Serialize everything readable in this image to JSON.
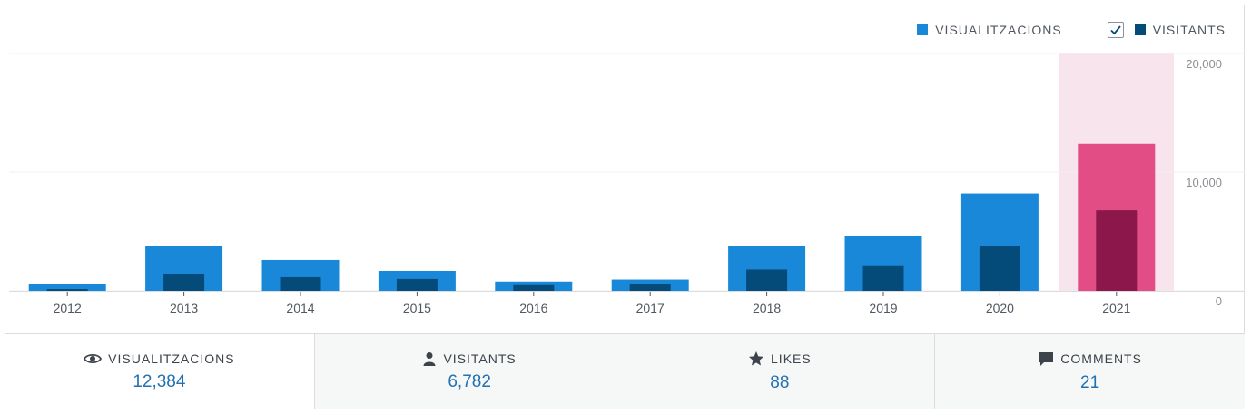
{
  "legend": {
    "views_label": "Visualitzacions",
    "visitors_label": "Visitants"
  },
  "colors": {
    "views": "#1a88d8",
    "visitors": "#044b7a",
    "highlight_views": "#e24d86",
    "highlight_visitors": "#8c174a",
    "highlight_band": "#f8e4ec"
  },
  "chart_data": {
    "type": "bar",
    "categories": [
      "2012",
      "2013",
      "2014",
      "2015",
      "2016",
      "2017",
      "2018",
      "2019",
      "2020",
      "2021"
    ],
    "series": [
      {
        "name": "Visualitzacions",
        "values": [
          560,
          3800,
          2600,
          1680,
          780,
          950,
          3750,
          4650,
          8200,
          12384
        ]
      },
      {
        "name": "Visitants",
        "values": [
          150,
          1450,
          1150,
          1000,
          480,
          600,
          1800,
          2080,
          3750,
          6782
        ]
      }
    ],
    "highlight_category": "2021",
    "ylim": [
      0,
      20000
    ],
    "yticks": [
      "20,000",
      "10,000",
      "0"
    ],
    "ytick_values": [
      20000,
      10000,
      0
    ],
    "grid": true,
    "legend_position": "top-right",
    "title": "",
    "xlabel": "",
    "ylabel": ""
  },
  "tabs": [
    {
      "label": "Visualitzacions",
      "value": "12,384",
      "icon": "eye-icon"
    },
    {
      "label": "Visitants",
      "value": "6,782",
      "icon": "person-icon"
    },
    {
      "label": "Likes",
      "value": "88",
      "icon": "star-icon"
    },
    {
      "label": "Comments",
      "value": "21",
      "icon": "comment-icon"
    }
  ]
}
